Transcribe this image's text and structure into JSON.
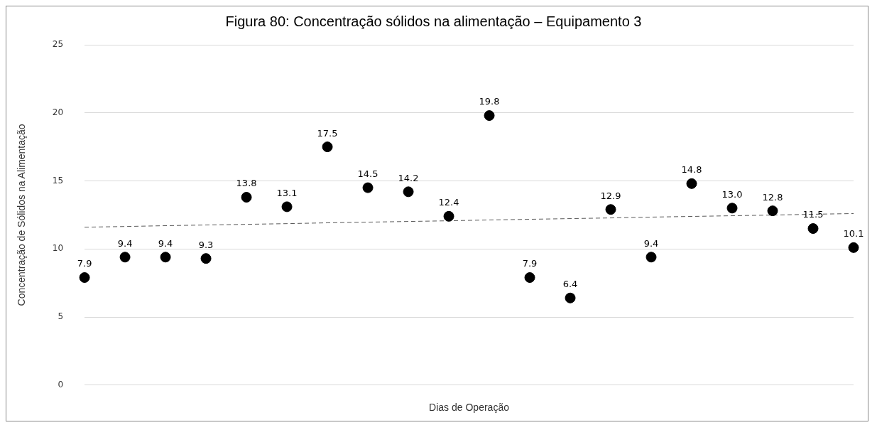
{
  "chart_data": {
    "type": "scatter",
    "title": "Figura 80: Concentração sólidos na alimentação – Equipamento 3",
    "xlabel": "Dias de Operação",
    "ylabel": "Concentração de Sólidos na Alimentação",
    "categories": [
      null,
      null,
      null,
      null,
      null,
      null,
      null,
      null,
      null,
      null,
      null,
      null,
      null,
      null,
      null,
      null,
      null,
      null,
      null,
      null
    ],
    "series": [
      {
        "color": "#000000",
        "marker": "circle",
        "values": [
          7.9,
          9.4,
          9.4,
          9.3,
          13.8,
          13.1,
          17.5,
          14.5,
          14.2,
          12.4,
          19.8,
          7.9,
          6.4,
          12.9,
          9.4,
          14.8,
          13.0,
          12.8,
          11.5,
          10.1
        ],
        "value_labels": [
          "7.9",
          "9.4",
          "9.4",
          "9.3",
          "13.8",
          "13.1",
          "17.5",
          "14.5",
          "14.2",
          "12.4",
          "19.8",
          "7.9",
          "6.4",
          "12.9",
          "9.4",
          "14.8",
          "13.0",
          "12.8",
          "11.5",
          "10.1"
        ]
      },
      {
        "type": "line",
        "color": "#595959",
        "line_style": "dashed",
        "marker": "none",
        "values": [
          11.6,
          11.65,
          11.71,
          11.76,
          11.81,
          11.86,
          11.92,
          11.97,
          12.02,
          12.07,
          12.13,
          12.18,
          12.23,
          12.28,
          12.34,
          12.39,
          12.44,
          12.49,
          12.55,
          12.6
        ]
      }
    ],
    "ylim": [
      0,
      25
    ],
    "yticks": [
      0,
      5,
      10,
      15,
      20,
      25
    ],
    "grid": "y",
    "legend": false
  }
}
